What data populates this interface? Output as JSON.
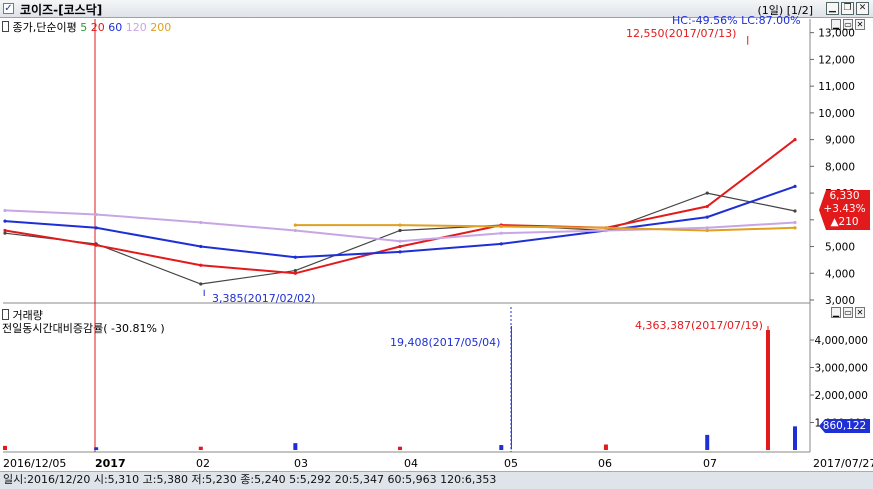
{
  "window": {
    "title": "코이즈-[코스닥]",
    "pages": "(1일) [1/2]",
    "checkbox": "✓"
  },
  "price_panel": {
    "legend_title": "종가,단순이평",
    "ma_periods": [
      {
        "label": "5",
        "color": "#2c9b2c"
      },
      {
        "label": "20",
        "color": "#e31a1c"
      },
      {
        "label": "60",
        "color": "#1f2fd6"
      },
      {
        "label": "120",
        "color": "#c8a6e6"
      },
      {
        "label": "200",
        "color": "#e0a020"
      }
    ],
    "hc_lc": "HC:-49.56%  LC:87.00%",
    "hc_color": "#1f2fd6",
    "lc_color": "#e31a1c",
    "high_label": "12,550(2017/07/13)",
    "low_label": "3,385(2017/02/02)",
    "current_price": "6,330",
    "current_change_pct": "+3.43%",
    "current_change": "▲210"
  },
  "volume_panel": {
    "title": "거래량",
    "subtitle": "전일동시간대비증감률( -30.81% )",
    "peak_label": "4,363,387(2017/07/19)",
    "mark_label": "19,408(2017/05/04)",
    "current_volume": "860,122"
  },
  "x_axis": {
    "labels": [
      "2016/12/05",
      "2017",
      "02",
      "03",
      "04",
      "05",
      "06",
      "07",
      "2017/07/27"
    ]
  },
  "status_text": "일시:2016/12/20 시:5,310 고:5,380 저:5,230 종:5,240 5:5,292 20:5,347 60:5,963 120:6,353",
  "chart_data": [
    {
      "type": "line",
      "title": "종가,단순이평",
      "x": [
        "2016/12/05",
        "2017/01",
        "2017/02",
        "2017/03",
        "2017/04",
        "2017/05",
        "2017/06",
        "2017/07",
        "2017/07/27"
      ],
      "y_ticks": [
        3000,
        4000,
        5000,
        6000,
        7000,
        8000,
        9000,
        10000,
        11000,
        12000,
        13000
      ],
      "ylim": [
        3000,
        13100
      ],
      "series": [
        {
          "name": "종가",
          "values": [
            5500,
            5100,
            3600,
            4100,
            5600,
            5800,
            5600,
            7000,
            6330
          ]
        },
        {
          "name": "20",
          "values": [
            5600,
            5050,
            4300,
            4000,
            5000,
            5800,
            5700,
            6500,
            9000
          ]
        },
        {
          "name": "60",
          "values": [
            5950,
            5700,
            5000,
            4600,
            4800,
            5100,
            5600,
            6100,
            7250
          ]
        },
        {
          "name": "120",
          "values": [
            6350,
            6200,
            5900,
            5600,
            5200,
            5500,
            5600,
            5700,
            5900
          ]
        },
        {
          "name": "200",
          "values": [
            null,
            null,
            null,
            5800,
            5800,
            5750,
            5700,
            5600,
            5700
          ]
        }
      ],
      "annotations": [
        {
          "text": "12,550(2017/07/13)",
          "x": "2017/07/13",
          "y": 12550
        },
        {
          "text": "3,385(2017/02/02)",
          "x": "2017/02/02",
          "y": 3385
        }
      ],
      "current": {
        "price": 6330,
        "change_pct": 3.43,
        "change": 210
      }
    },
    {
      "type": "bar",
      "title": "거래량",
      "x": [
        "2016/12/05",
        "2017/01",
        "2017/02",
        "2017/03",
        "2017/04",
        "2017/05",
        "2017/06",
        "2017/07",
        "2017/07/19",
        "2017/07/27"
      ],
      "y_ticks": [
        1000000,
        2000000,
        3000000,
        4000000
      ],
      "ylim": [
        0,
        4800000
      ],
      "values": [
        150000,
        100000,
        120000,
        250000,
        120000,
        180000,
        200000,
        550000,
        4363387,
        860122
      ],
      "annotations": [
        {
          "text": "4,363,387(2017/07/19)",
          "x": "2017/07/19",
          "y": 4363387
        },
        {
          "text": "19,408(2017/05/04)",
          "x": "2017/05/04",
          "y": 19408
        }
      ],
      "current": 860122
    }
  ]
}
